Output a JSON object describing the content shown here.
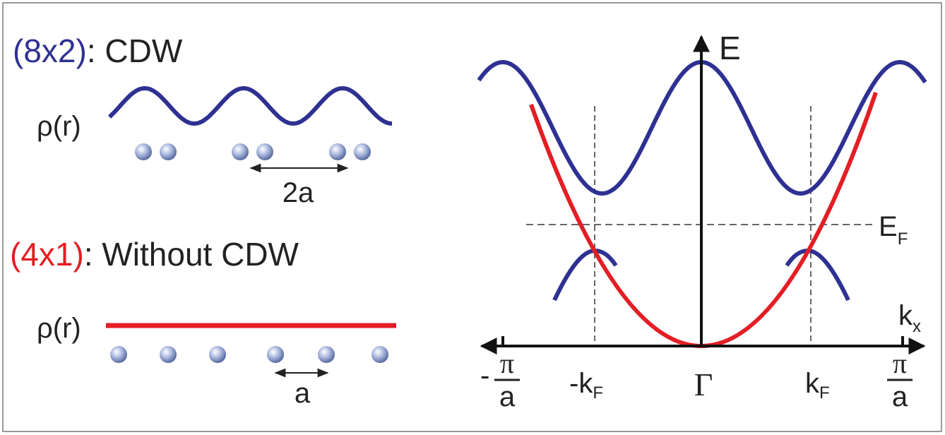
{
  "left": {
    "cdw": {
      "label": "(8x2)",
      "text": ": CDW",
      "density": "ρ(r)",
      "spacing": "2a"
    },
    "no_cdw": {
      "label": "(4x1)",
      "text": ": Without CDW",
      "density": "ρ(r)",
      "spacing": "a"
    }
  },
  "right": {
    "energy_axis": "E",
    "fermi_level": {
      "main": "E",
      "sub": "F"
    },
    "k_axis": {
      "main": "k",
      "sub": "x"
    },
    "ticks": {
      "neg_zone": {
        "sign": "-",
        "numerator": "π",
        "denominator": "a"
      },
      "neg_kf": {
        "main": "-k",
        "sub": "F"
      },
      "gamma": "Γ",
      "kf": {
        "main": "k",
        "sub": "F"
      },
      "pos_zone": {
        "numerator": "π",
        "denominator": "a"
      }
    }
  }
}
